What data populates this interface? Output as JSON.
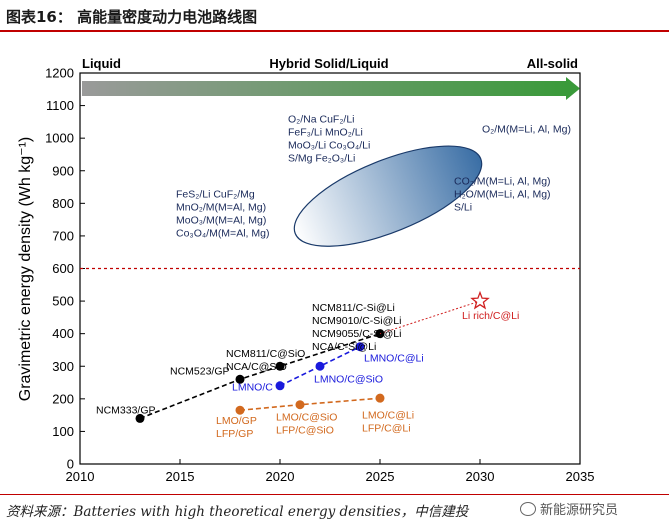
{
  "header": {
    "title": "图表16：  高能量密度动力电池路线图"
  },
  "footer": {
    "source": "资料来源：Batteries with high theoretical energy densities，中信建投",
    "watermark": "新能源研究员"
  },
  "colors": {
    "title_rule": "#c00000",
    "black_series": "#000000",
    "blue_series": "#1a1adc",
    "orange_series": "#d2691e",
    "ref_line": "#c00000",
    "star": "#d02020",
    "ellipse_fill_start": "#ffffff",
    "ellipse_fill_end": "#3a6ea5",
    "ellipse_stroke": "#1a3a6a",
    "arrow_start": "#9a9a9a",
    "arrow_end": "#3a9a3a"
  },
  "chart_data": {
    "type": "scatter",
    "title": "",
    "xlabel": "",
    "ylabel": "Gravimetric energy density (Wh kg⁻¹)",
    "xlim": [
      2010,
      2035
    ],
    "ylim": [
      0,
      1200
    ],
    "xticks": [
      2010,
      2015,
      2020,
      2025,
      2030,
      2035
    ],
    "yticks": [
      0,
      100,
      200,
      300,
      400,
      500,
      600,
      700,
      800,
      900,
      1000,
      1100,
      1200
    ],
    "phase_labels": [
      "Liquid",
      "Hybrid Solid/Liquid",
      "All-solid"
    ],
    "reference_line": {
      "y": 600
    },
    "series": [
      {
        "name": "black",
        "color": "#000000",
        "points": [
          {
            "x": 2013,
            "y": 140
          },
          {
            "x": 2018,
            "y": 260
          },
          {
            "x": 2020,
            "y": 300
          },
          {
            "x": 2025,
            "y": 400
          }
        ]
      },
      {
        "name": "blue",
        "color": "#1a1adc",
        "points": [
          {
            "x": 2020,
            "y": 240
          },
          {
            "x": 2022,
            "y": 300
          },
          {
            "x": 2024,
            "y": 360
          }
        ]
      },
      {
        "name": "orange",
        "color": "#d2691e",
        "points": [
          {
            "x": 2018,
            "y": 165
          },
          {
            "x": 2021,
            "y": 182
          },
          {
            "x": 2025,
            "y": 202
          }
        ]
      },
      {
        "name": "lirich",
        "color": "#d02020",
        "points": [
          {
            "x": 2025,
            "y": 400
          },
          {
            "x": 2030,
            "y": 500
          }
        ]
      }
    ],
    "target_region": {
      "center_x": 2025.4,
      "center_y": 822,
      "half_width_years": 5.0,
      "half_height": 110,
      "rotation_deg": -22
    },
    "annotations": [
      {
        "x": 2010.8,
        "y": 155,
        "lines": [
          "NCM333/GP"
        ],
        "color": "#000000"
      },
      {
        "x": 2014.5,
        "y": 275,
        "lines": [
          "NCM523/GP"
        ],
        "color": "#000000"
      },
      {
        "x": 2017.3,
        "y": 328,
        "lines": [
          "NCM811/C@SiO",
          "NCA/C@SiO"
        ],
        "color": "#000000"
      },
      {
        "x": 2021.6,
        "y": 470,
        "lines": [
          "NCM811/C-Si@Li",
          "NCM9010/C-Si@Li",
          "NCM9055/C-Si@Li",
          "NCA/C-Si@Li"
        ],
        "color": "#000000"
      },
      {
        "x": 2017.6,
        "y": 225,
        "lines": [
          "LMNO/C"
        ],
        "color": "#1a1adc"
      },
      {
        "x": 2021.7,
        "y": 250,
        "lines": [
          "LMNO/C@SiO"
        ],
        "color": "#1a1adc"
      },
      {
        "x": 2024.2,
        "y": 315,
        "lines": [
          "LMNO/C@Li"
        ],
        "color": "#1a1adc"
      },
      {
        "x": 2016.8,
        "y": 123,
        "lines": [
          "LMO/GP",
          "LFP/GP"
        ],
        "color": "#d2691e"
      },
      {
        "x": 2019.8,
        "y": 133,
        "lines": [
          "LMO/C@SiO",
          "LFP/C@SiO"
        ],
        "color": "#d2691e"
      },
      {
        "x": 2024.1,
        "y": 140,
        "lines": [
          "LMO/C@Li",
          "LFP/C@Li"
        ],
        "color": "#d2691e"
      },
      {
        "x": 2029.1,
        "y": 445,
        "lines": [
          "Li rich/C@Li"
        ],
        "color": "#d02020"
      },
      {
        "x": 2014.8,
        "y": 818,
        "lines": [
          "FeS₂/Li    CuF₂/Mg",
          "MnO₂/M(M=Al, Mg)",
          "MoO₃/M(M=Al, Mg)",
          "Co₃O₄/M(M=Al, Mg)"
        ],
        "color": "#1a2a5a"
      },
      {
        "x": 2020.4,
        "y": 1048,
        "lines": [
          "O₂/Na    CuF₂/Li",
          "FeF₃/Li    MnO₂/Li",
          "MoO₃/Li    Co₃O₄/Li",
          "S/Mg    Fe₂O₃/Li"
        ],
        "color": "#1a2a5a"
      },
      {
        "x": 2030.1,
        "y": 1018,
        "lines": [
          "O₂/M(M=Li, Al, Mg)"
        ],
        "color": "#1a2a5a"
      },
      {
        "x": 2028.7,
        "y": 858,
        "lines": [
          "CO₂/M(M=Li, Al, Mg)",
          "H₂O/M(M=Li, Al, Mg)",
          "S/Li"
        ],
        "color": "#1a2a5a"
      }
    ]
  }
}
